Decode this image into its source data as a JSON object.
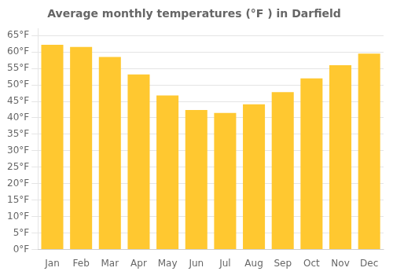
{
  "chart_data": {
    "type": "bar",
    "title": "Average monthly temperatures (°F ) in Darfield",
    "categories": [
      "Jan",
      "Feb",
      "Mar",
      "Apr",
      "May",
      "Jun",
      "Jul",
      "Aug",
      "Sep",
      "Oct",
      "Nov",
      "Dec"
    ],
    "values": [
      62.2,
      61.5,
      58.5,
      53.2,
      46.8,
      42.4,
      41.5,
      44.1,
      47.8,
      52.0,
      56.0,
      59.5
    ],
    "color": "#FFC830",
    "ylim": [
      0,
      67
    ],
    "yticks": [
      {
        "value": 0,
        "label": "0°F"
      },
      {
        "value": 5,
        "label": "5°F"
      },
      {
        "value": 10,
        "label": "10°F"
      },
      {
        "value": 15,
        "label": "15°F"
      },
      {
        "value": 20,
        "label": "20°F"
      },
      {
        "value": 25,
        "label": "25°F"
      },
      {
        "value": 30,
        "label": "30°F"
      },
      {
        "value": 35,
        "label": "35°F"
      },
      {
        "value": 40,
        "label": "40°F"
      },
      {
        "value": 45,
        "label": "45°F"
      },
      {
        "value": 50,
        "label": "50°F"
      },
      {
        "value": 55,
        "label": "55°F"
      },
      {
        "value": 60,
        "label": "60°F"
      },
      {
        "value": 65,
        "label": "65°F"
      }
    ],
    "grid": "y"
  }
}
